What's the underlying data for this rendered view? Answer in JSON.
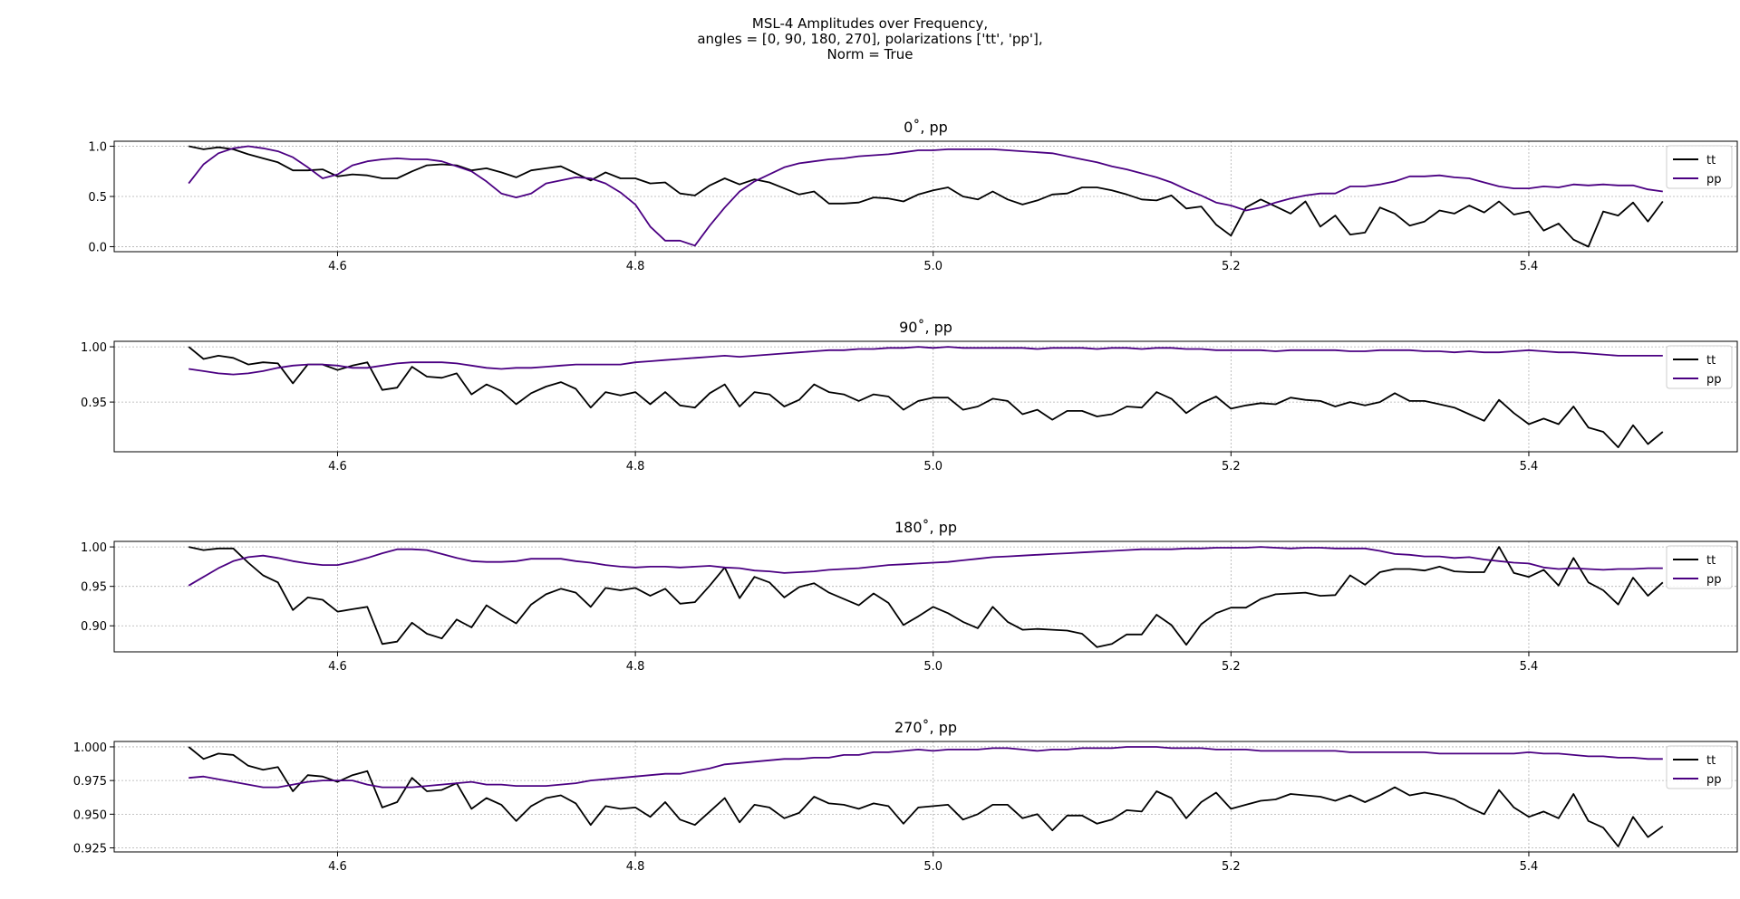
{
  "title_lines": [
    "MSL-4 Amplitudes over Frequency,",
    "angles = [0, 90, 180, 270], polarizations ['tt', 'pp'],",
    "Norm = True"
  ],
  "colors": {
    "tt": "#000000",
    "pp": "#4b0082",
    "grid": "#b0b0b0"
  },
  "chart_data": [
    {
      "type": "line",
      "title": "0˚, pp",
      "x_start": 4.5,
      "x_step": 0.01,
      "xlim": [
        4.45,
        5.54
      ],
      "ylim": [
        -0.05,
        1.05
      ],
      "xticks": [
        4.6,
        4.8,
        5.0,
        5.2,
        5.4
      ],
      "xtick_labels": [
        "4.6",
        "4.8",
        "5.0",
        "5.2",
        "5.4"
      ],
      "yticks": [
        0.0,
        0.5,
        1.0
      ],
      "ytick_labels": [
        "0.0",
        "0.5",
        "1.0"
      ],
      "grid": true,
      "legend": "right",
      "series": [
        {
          "name": "tt",
          "values": [
            1.0,
            0.97,
            0.99,
            0.97,
            0.92,
            0.88,
            0.84,
            0.76,
            0.76,
            0.77,
            0.7,
            0.72,
            0.71,
            0.68,
            0.68,
            0.75,
            0.81,
            0.82,
            0.81,
            0.76,
            0.78,
            0.74,
            0.69,
            0.76,
            0.78,
            0.8,
            0.73,
            0.66,
            0.74,
            0.68,
            0.68,
            0.63,
            0.64,
            0.53,
            0.51,
            0.61,
            0.68,
            0.62,
            0.67,
            0.64,
            0.58,
            0.52,
            0.55,
            0.43,
            0.43,
            0.44,
            0.49,
            0.48,
            0.45,
            0.52,
            0.56,
            0.59,
            0.5,
            0.47,
            0.55,
            0.47,
            0.42,
            0.46,
            0.52,
            0.53,
            0.59,
            0.59,
            0.56,
            0.52,
            0.47,
            0.46,
            0.51,
            0.38,
            0.4,
            0.22,
            0.11,
            0.39,
            0.47,
            0.4,
            0.33,
            0.45,
            0.2,
            0.31,
            0.12,
            0.14,
            0.39,
            0.33,
            0.21,
            0.25,
            0.36,
            0.33,
            0.41,
            0.34,
            0.45,
            0.32,
            0.35,
            0.16,
            0.23,
            0.07,
            0.0,
            0.35,
            0.31,
            0.44,
            0.25,
            0.45
          ]
        },
        {
          "name": "pp",
          "values": [
            0.63,
            0.82,
            0.93,
            0.98,
            1.0,
            0.98,
            0.95,
            0.89,
            0.79,
            0.68,
            0.72,
            0.81,
            0.85,
            0.87,
            0.88,
            0.87,
            0.87,
            0.85,
            0.8,
            0.75,
            0.65,
            0.53,
            0.49,
            0.53,
            0.63,
            0.66,
            0.69,
            0.68,
            0.63,
            0.54,
            0.42,
            0.2,
            0.06,
            0.06,
            0.01,
            0.21,
            0.39,
            0.55,
            0.65,
            0.72,
            0.79,
            0.83,
            0.85,
            0.87,
            0.88,
            0.9,
            0.91,
            0.92,
            0.94,
            0.96,
            0.96,
            0.97,
            0.97,
            0.97,
            0.97,
            0.96,
            0.95,
            0.94,
            0.93,
            0.9,
            0.87,
            0.84,
            0.8,
            0.77,
            0.73,
            0.69,
            0.64,
            0.57,
            0.51,
            0.44,
            0.41,
            0.36,
            0.39,
            0.44,
            0.48,
            0.51,
            0.53,
            0.53,
            0.6,
            0.6,
            0.62,
            0.65,
            0.7,
            0.7,
            0.71,
            0.69,
            0.68,
            0.64,
            0.6,
            0.58,
            0.58,
            0.6,
            0.59,
            0.62,
            0.61,
            0.62,
            0.61,
            0.61,
            0.57,
            0.55
          ]
        }
      ]
    },
    {
      "type": "line",
      "title": "90˚, pp",
      "x_start": 4.5,
      "x_step": 0.01,
      "xlim": [
        4.45,
        5.54
      ],
      "ylim": [
        0.905,
        1.005
      ],
      "xticks": [
        4.6,
        4.8,
        5.0,
        5.2,
        5.4
      ],
      "xtick_labels": [
        "4.6",
        "4.8",
        "5.0",
        "5.2",
        "5.4"
      ],
      "yticks": [
        0.95,
        1.0
      ],
      "ytick_labels": [
        "0.95",
        "1.00"
      ],
      "grid": true,
      "legend": "right",
      "series": [
        {
          "name": "tt",
          "values": [
            1.0,
            0.989,
            0.992,
            0.99,
            0.984,
            0.986,
            0.985,
            0.967,
            0.984,
            0.984,
            0.979,
            0.983,
            0.986,
            0.961,
            0.963,
            0.982,
            0.973,
            0.972,
            0.976,
            0.957,
            0.966,
            0.96,
            0.948,
            0.958,
            0.964,
            0.968,
            0.962,
            0.945,
            0.959,
            0.956,
            0.959,
            0.948,
            0.959,
            0.947,
            0.945,
            0.958,
            0.966,
            0.946,
            0.959,
            0.957,
            0.946,
            0.952,
            0.966,
            0.959,
            0.957,
            0.951,
            0.957,
            0.955,
            0.943,
            0.951,
            0.954,
            0.954,
            0.943,
            0.946,
            0.953,
            0.951,
            0.939,
            0.943,
            0.934,
            0.942,
            0.942,
            0.937,
            0.939,
            0.946,
            0.945,
            0.959,
            0.953,
            0.94,
            0.949,
            0.955,
            0.944,
            0.947,
            0.949,
            0.948,
            0.954,
            0.952,
            0.951,
            0.946,
            0.95,
            0.947,
            0.95,
            0.958,
            0.951,
            0.951,
            0.948,
            0.945,
            0.939,
            0.933,
            0.952,
            0.94,
            0.93,
            0.935,
            0.93,
            0.946,
            0.927,
            0.923,
            0.909,
            0.929,
            0.912,
            0.923
          ]
        },
        {
          "name": "pp",
          "values": [
            0.98,
            0.978,
            0.976,
            0.975,
            0.976,
            0.978,
            0.981,
            0.983,
            0.984,
            0.984,
            0.983,
            0.981,
            0.981,
            0.983,
            0.985,
            0.986,
            0.986,
            0.986,
            0.985,
            0.983,
            0.981,
            0.98,
            0.981,
            0.981,
            0.982,
            0.983,
            0.984,
            0.984,
            0.984,
            0.984,
            0.986,
            0.987,
            0.988,
            0.989,
            0.99,
            0.991,
            0.992,
            0.991,
            0.992,
            0.993,
            0.994,
            0.995,
            0.996,
            0.997,
            0.997,
            0.998,
            0.998,
            0.999,
            0.999,
            1.0,
            0.999,
            1.0,
            0.999,
            0.999,
            0.999,
            0.999,
            0.999,
            0.998,
            0.999,
            0.999,
            0.999,
            0.998,
            0.999,
            0.999,
            0.998,
            0.999,
            0.999,
            0.998,
            0.998,
            0.997,
            0.997,
            0.997,
            0.997,
            0.996,
            0.997,
            0.997,
            0.997,
            0.997,
            0.996,
            0.996,
            0.997,
            0.997,
            0.997,
            0.996,
            0.996,
            0.995,
            0.996,
            0.995,
            0.995,
            0.996,
            0.997,
            0.996,
            0.995,
            0.995,
            0.994,
            0.993,
            0.992,
            0.992,
            0.992,
            0.992
          ]
        }
      ]
    },
    {
      "type": "line",
      "title": "180˚, pp",
      "x_start": 4.5,
      "x_step": 0.01,
      "xlim": [
        4.45,
        5.54
      ],
      "ylim": [
        0.867,
        1.007
      ],
      "xticks": [
        4.6,
        4.8,
        5.0,
        5.2,
        5.4
      ],
      "xtick_labels": [
        "4.6",
        "4.8",
        "5.0",
        "5.2",
        "5.4"
      ],
      "yticks": [
        0.9,
        0.95,
        1.0
      ],
      "ytick_labels": [
        "0.90",
        "0.95",
        "1.00"
      ],
      "grid": true,
      "legend": "right",
      "series": [
        {
          "name": "tt",
          "values": [
            1.0,
            0.996,
            0.998,
            0.998,
            0.98,
            0.964,
            0.955,
            0.92,
            0.936,
            0.933,
            0.918,
            0.921,
            0.924,
            0.877,
            0.88,
            0.904,
            0.89,
            0.884,
            0.908,
            0.898,
            0.926,
            0.914,
            0.903,
            0.927,
            0.94,
            0.947,
            0.942,
            0.924,
            0.948,
            0.945,
            0.948,
            0.938,
            0.947,
            0.928,
            0.93,
            0.951,
            0.974,
            0.935,
            0.962,
            0.955,
            0.936,
            0.949,
            0.954,
            0.942,
            0.934,
            0.926,
            0.941,
            0.929,
            0.901,
            0.912,
            0.924,
            0.916,
            0.905,
            0.897,
            0.924,
            0.905,
            0.895,
            0.896,
            0.895,
            0.894,
            0.89,
            0.873,
            0.877,
            0.889,
            0.889,
            0.914,
            0.901,
            0.876,
            0.902,
            0.916,
            0.923,
            0.923,
            0.934,
            0.94,
            0.941,
            0.942,
            0.938,
            0.939,
            0.964,
            0.952,
            0.968,
            0.972,
            0.972,
            0.97,
            0.975,
            0.969,
            0.968,
            0.968,
            1.0,
            0.967,
            0.962,
            0.971,
            0.951,
            0.986,
            0.955,
            0.945,
            0.927,
            0.961,
            0.938,
            0.955
          ]
        },
        {
          "name": "pp",
          "values": [
            0.951,
            0.962,
            0.973,
            0.982,
            0.987,
            0.989,
            0.986,
            0.982,
            0.979,
            0.977,
            0.977,
            0.981,
            0.986,
            0.992,
            0.997,
            0.997,
            0.996,
            0.991,
            0.986,
            0.982,
            0.981,
            0.981,
            0.982,
            0.985,
            0.985,
            0.985,
            0.982,
            0.98,
            0.977,
            0.975,
            0.974,
            0.975,
            0.975,
            0.974,
            0.975,
            0.976,
            0.974,
            0.973,
            0.97,
            0.969,
            0.967,
            0.968,
            0.969,
            0.971,
            0.972,
            0.973,
            0.975,
            0.977,
            0.978,
            0.979,
            0.98,
            0.981,
            0.983,
            0.985,
            0.987,
            0.988,
            0.989,
            0.99,
            0.991,
            0.992,
            0.993,
            0.994,
            0.995,
            0.996,
            0.997,
            0.997,
            0.997,
            0.998,
            0.998,
            0.999,
            0.999,
            0.999,
            1.0,
            0.999,
            0.998,
            0.999,
            0.999,
            0.998,
            0.998,
            0.998,
            0.995,
            0.991,
            0.99,
            0.988,
            0.988,
            0.986,
            0.987,
            0.984,
            0.982,
            0.98,
            0.979,
            0.974,
            0.972,
            0.973,
            0.972,
            0.971,
            0.972,
            0.972,
            0.973,
            0.973
          ]
        }
      ]
    },
    {
      "type": "line",
      "title": "270˚, pp",
      "x_start": 4.5,
      "x_step": 0.01,
      "xlim": [
        4.45,
        5.54
      ],
      "ylim": [
        0.922,
        1.004
      ],
      "xticks": [
        4.6,
        4.8,
        5.0,
        5.2,
        5.4
      ],
      "xtick_labels": [
        "4.6",
        "4.8",
        "5.0",
        "5.2",
        "5.4"
      ],
      "yticks": [
        0.925,
        0.95,
        0.975,
        1.0
      ],
      "ytick_labels": [
        "0.925",
        "0.950",
        "0.975",
        "1.000"
      ],
      "grid": true,
      "legend": "right",
      "series": [
        {
          "name": "tt",
          "values": [
            1.0,
            0.991,
            0.995,
            0.994,
            0.986,
            0.983,
            0.985,
            0.967,
            0.979,
            0.978,
            0.974,
            0.979,
            0.982,
            0.955,
            0.959,
            0.977,
            0.967,
            0.968,
            0.973,
            0.954,
            0.962,
            0.957,
            0.945,
            0.956,
            0.962,
            0.964,
            0.958,
            0.942,
            0.956,
            0.954,
            0.955,
            0.948,
            0.959,
            0.946,
            0.942,
            0.952,
            0.962,
            0.944,
            0.957,
            0.955,
            0.947,
            0.951,
            0.963,
            0.958,
            0.957,
            0.954,
            0.958,
            0.956,
            0.943,
            0.955,
            0.956,
            0.957,
            0.946,
            0.95,
            0.957,
            0.957,
            0.947,
            0.95,
            0.938,
            0.949,
            0.949,
            0.943,
            0.946,
            0.953,
            0.952,
            0.967,
            0.962,
            0.947,
            0.959,
            0.966,
            0.954,
            0.957,
            0.96,
            0.961,
            0.965,
            0.964,
            0.963,
            0.96,
            0.964,
            0.959,
            0.964,
            0.97,
            0.964,
            0.966,
            0.964,
            0.961,
            0.955,
            0.95,
            0.968,
            0.955,
            0.948,
            0.952,
            0.947,
            0.965,
            0.945,
            0.94,
            0.926,
            0.948,
            0.933,
            0.941
          ]
        },
        {
          "name": "pp",
          "values": [
            0.977,
            0.978,
            0.976,
            0.974,
            0.972,
            0.97,
            0.97,
            0.972,
            0.974,
            0.975,
            0.975,
            0.975,
            0.972,
            0.97,
            0.97,
            0.97,
            0.971,
            0.972,
            0.973,
            0.974,
            0.972,
            0.972,
            0.971,
            0.971,
            0.971,
            0.972,
            0.973,
            0.975,
            0.976,
            0.977,
            0.978,
            0.979,
            0.98,
            0.98,
            0.982,
            0.984,
            0.987,
            0.988,
            0.989,
            0.99,
            0.991,
            0.991,
            0.992,
            0.992,
            0.994,
            0.994,
            0.996,
            0.996,
            0.997,
            0.998,
            0.997,
            0.998,
            0.998,
            0.998,
            0.999,
            0.999,
            0.998,
            0.997,
            0.998,
            0.998,
            0.999,
            0.999,
            0.999,
            1.0,
            1.0,
            1.0,
            0.999,
            0.999,
            0.999,
            0.998,
            0.998,
            0.998,
            0.997,
            0.997,
            0.997,
            0.997,
            0.997,
            0.997,
            0.996,
            0.996,
            0.996,
            0.996,
            0.996,
            0.996,
            0.995,
            0.995,
            0.995,
            0.995,
            0.995,
            0.995,
            0.996,
            0.995,
            0.995,
            0.994,
            0.993,
            0.993,
            0.992,
            0.992,
            0.991,
            0.991
          ]
        }
      ]
    }
  ]
}
